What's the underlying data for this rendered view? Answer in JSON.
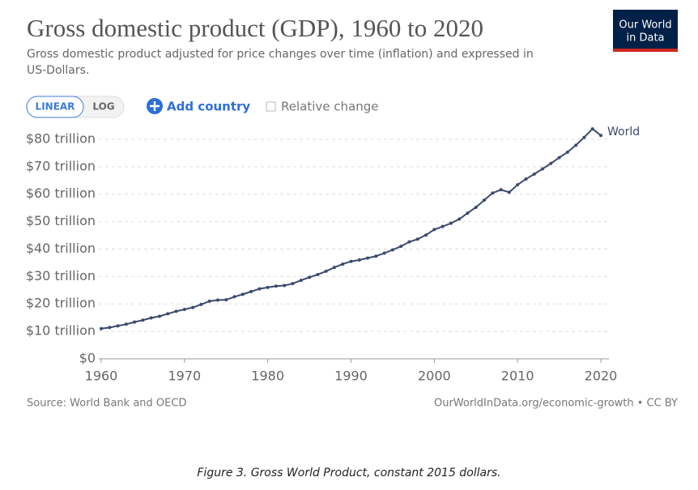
{
  "chart_data": {
    "type": "line",
    "title": "Gross domestic product (GDP), 1960 to 2020",
    "subtitle": [
      "Gross domestic product adjusted for price changes over time (inflation) and expressed in",
      "US-Dollars."
    ],
    "x": [
      1960,
      1961,
      1962,
      1963,
      1964,
      1965,
      1966,
      1967,
      1968,
      1969,
      1970,
      1971,
      1972,
      1973,
      1974,
      1975,
      1976,
      1977,
      1978,
      1979,
      1980,
      1981,
      1982,
      1983,
      1984,
      1985,
      1986,
      1987,
      1988,
      1989,
      1990,
      1991,
      1992,
      1993,
      1994,
      1995,
      1996,
      1997,
      1998,
      1999,
      2000,
      2001,
      2002,
      2003,
      2004,
      2005,
      2006,
      2007,
      2008,
      2009,
      2010,
      2011,
      2012,
      2013,
      2014,
      2015,
      2016,
      2017,
      2018,
      2019,
      2020
    ],
    "series": [
      {
        "name": "World",
        "color": "#3c4a6e",
        "values": [
          11,
          11.4,
          12,
          12.6,
          13.4,
          14.1,
          14.9,
          15.5,
          16.4,
          17.3,
          18,
          18.7,
          19.8,
          21,
          21.4,
          21.5,
          22.6,
          23.5,
          24.5,
          25.5,
          26,
          26.5,
          26.7,
          27.4,
          28.6,
          29.7,
          30.7,
          31.9,
          33.3,
          34.5,
          35.5,
          36,
          36.7,
          37.4,
          38.5,
          39.7,
          41,
          42.6,
          43.6,
          45.1,
          47.1,
          48.2,
          49.4,
          50.9,
          53.1,
          55.2,
          57.8,
          60.4,
          61.6,
          60.7,
          63.4,
          65.5,
          67.3,
          69.2,
          71.2,
          73.3,
          75.3,
          77.8,
          80.7,
          83.8,
          81.4
        ]
      }
    ],
    "xlim": [
      1960,
      2020
    ],
    "xticks": [
      1960,
      1970,
      1980,
      1990,
      2000,
      2010,
      2020
    ],
    "ylim": [
      0,
      85
    ],
    "yticks": [
      {
        "value": 0,
        "label": "$0"
      },
      {
        "value": 10,
        "label": "$10 trillion"
      },
      {
        "value": 20,
        "label": "$20 trillion"
      },
      {
        "value": 30,
        "label": "$30 trillion"
      },
      {
        "value": 40,
        "label": "$40 trillion"
      },
      {
        "value": 50,
        "label": "$50 trillion"
      },
      {
        "value": 60,
        "label": "$60 trillion"
      },
      {
        "value": 70,
        "label": "$70 trillion"
      },
      {
        "value": 80,
        "label": "$80 trillion"
      }
    ],
    "grid": true
  },
  "logo": [
    "Our World",
    "in Data"
  ],
  "controls": {
    "linear": "LINEAR",
    "log": "LOG",
    "add": "Add country",
    "relative": "Relative change"
  },
  "footer": {
    "source": "Source: World Bank and OECD",
    "url": "OurWorldInData.org/economic-growth • CC BY"
  },
  "caption": "Figure 3. Gross World Product, constant 2015 dollars."
}
